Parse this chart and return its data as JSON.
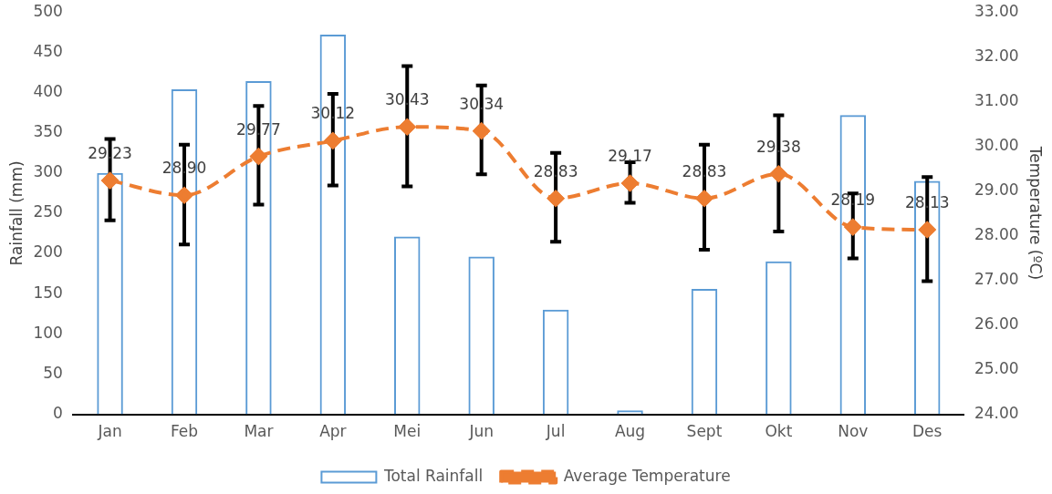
{
  "chart_data": {
    "type": "bar",
    "xlabel": null,
    "ylabel": "Rainfall (mm)",
    "y2label": "Temperature (ºC)",
    "categories": [
      "Jan",
      "Feb",
      "Mar",
      "Apr",
      "Mei",
      "Jun",
      "Jul",
      "Aug",
      "Sept",
      "Okt",
      "Nov",
      "Des"
    ],
    "series": [
      {
        "name": "Total Rainfall",
        "color": "#5b9bd5",
        "values": [
          300,
          404,
          414,
          472,
          221,
          196,
          130,
          5,
          156,
          190,
          372,
          290
        ]
      },
      {
        "name": "Average Temperature",
        "type": "line",
        "axis": "y2",
        "color": "#ed7d31",
        "marker": "diamond",
        "line_style": "dashed",
        "data_labels": true,
        "values": [
          29.23,
          28.9,
          29.77,
          30.12,
          30.43,
          30.34,
          28.83,
          29.17,
          28.83,
          29.38,
          28.19,
          28.13
        ],
        "value_labels": [
          "29.23",
          "28.90",
          "29.77",
          "30.12",
          "30.43",
          "30.34",
          "28.83",
          "29.17",
          "28.83",
          "29.38",
          "28.19",
          "28.13"
        ],
        "errors": [
          [
            28.34,
            30.16
          ],
          [
            27.8,
            30.03
          ],
          [
            28.69,
            30.9
          ],
          [
            29.12,
            31.17
          ],
          [
            29.1,
            31.79
          ],
          [
            29.37,
            31.36
          ],
          [
            27.86,
            29.85
          ],
          [
            28.73,
            29.64
          ],
          [
            27.68,
            30.03
          ],
          [
            28.09,
            30.69
          ],
          [
            27.49,
            28.94
          ],
          [
            26.98,
            29.31
          ]
        ]
      }
    ],
    "ylim": [
      0,
      500
    ],
    "yticks": [
      0,
      50,
      100,
      150,
      200,
      250,
      300,
      350,
      400,
      450,
      500
    ],
    "y2lim": [
      24,
      33
    ],
    "y2ticks": [
      {
        "value": 24,
        "label": "24.00"
      },
      {
        "value": 25,
        "label": "25.00"
      },
      {
        "value": 26,
        "label": "26.00"
      },
      {
        "value": 27,
        "label": "27.00"
      },
      {
        "value": 28,
        "label": "28.00"
      },
      {
        "value": 29,
        "label": "29.00"
      },
      {
        "value": 30,
        "label": "30.00"
      },
      {
        "value": 31,
        "label": "31.00"
      },
      {
        "value": 32,
        "label": "32.00"
      },
      {
        "value": 33,
        "label": "33.00"
      }
    ],
    "grid": false,
    "legend": "bottom"
  }
}
